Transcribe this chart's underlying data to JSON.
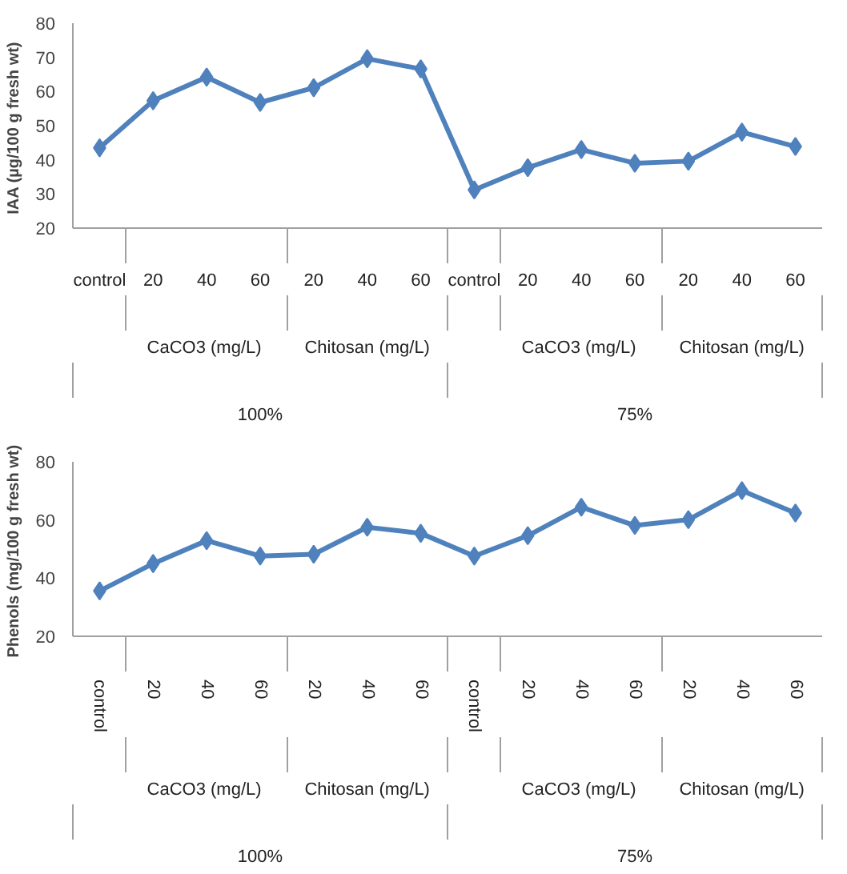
{
  "chart_data": [
    {
      "type": "line",
      "ylabel": "IAA  (µg/100 g fresh wt)",
      "categories": [
        "control",
        "20",
        "40",
        "60",
        "20",
        "40",
        "60",
        "control",
        "20",
        "40",
        "60",
        "20",
        "40",
        "60"
      ],
      "series": [
        {
          "color": "#4f81bd",
          "values": [
            43.5,
            57.3,
            64.2,
            56.8,
            61.1,
            69.6,
            66.6,
            31.2,
            37.7,
            43.0,
            39.0,
            39.6,
            48.1,
            43.9
          ]
        }
      ],
      "ylim": [
        20,
        80
      ],
      "yticks": [
        20,
        30,
        40,
        50,
        60,
        70,
        80
      ],
      "marker": "diamond",
      "grid": false,
      "annotations": [
        "CaCO3  (mg/L)",
        "Chitosan (mg/L)",
        "CaCO3  (mg/L)",
        "Chitosan (mg/L)",
        "100%",
        "75%"
      ]
    },
    {
      "type": "line",
      "ylabel": "Phenols  (mg/100 g fresh wt)",
      "categories": [
        "control",
        "20",
        "40",
        "60",
        "20",
        "40",
        "60",
        "control",
        "20",
        "40",
        "60",
        "20",
        "40",
        "60"
      ],
      "series": [
        {
          "color": "#4f81bd",
          "values": [
            35.6,
            45.0,
            52.9,
            47.6,
            48.2,
            57.5,
            55.4,
            47.6,
            54.6,
            64.4,
            58.1,
            60.1,
            70.1,
            62.4
          ]
        }
      ],
      "ylim": [
        20,
        80
      ],
      "yticks": [
        20,
        40,
        60,
        80
      ],
      "marker": "diamond",
      "grid": false,
      "annotations": [
        "CaCO3  (mg/L)",
        "Chitosan (mg/L)",
        "CaCO3  (mg/L)",
        "Chitosan (mg/L)",
        "100%",
        "75%"
      ]
    }
  ]
}
